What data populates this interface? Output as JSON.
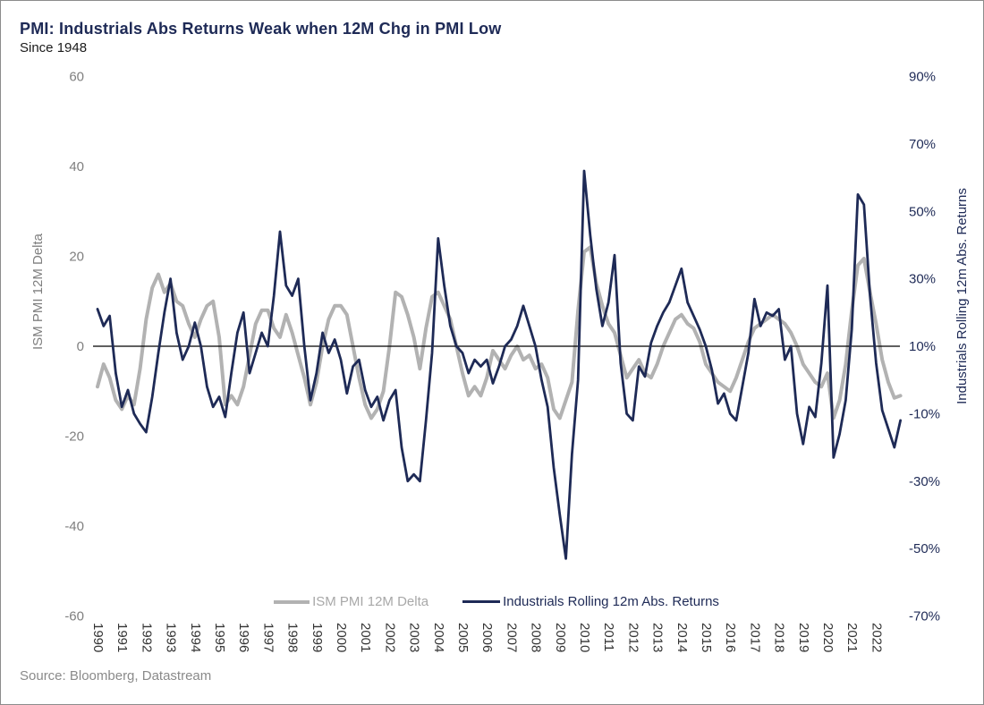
{
  "header": {
    "title": "PMI: Industrials Abs Returns Weak when 12M Chg in PMI Low",
    "subtitle": "Since 1948"
  },
  "source": "Source: Bloomberg, Datastream",
  "colors": {
    "navy": "#1e2a56",
    "gray": "#b2b2b2"
  },
  "chart_data": {
    "type": "line",
    "title": "PMI: Industrials Abs Returns Weak when 12M Chg in PMI Low",
    "subtitle": "Since 1948",
    "grid": false,
    "legend_position": "bottom",
    "left_axis": {
      "label": "ISM PMI 12M Delta",
      "ticks": [
        60,
        40,
        20,
        0,
        -20,
        -40,
        -60
      ],
      "range": [
        -60,
        60
      ]
    },
    "right_axis": {
      "label": "Industrials Rolling 12m Abs. Returns",
      "ticks": [
        "90%",
        "70%",
        "50%",
        "30%",
        "10%",
        "-10%",
        "-30%",
        "-50%",
        "-70%"
      ],
      "range": [
        -70,
        90
      ]
    },
    "x_ticks": [
      1990,
      1991,
      1992,
      1993,
      1994,
      1995,
      1996,
      1997,
      1998,
      1999,
      2000,
      2001,
      2002,
      2003,
      2004,
      2005,
      2006,
      2007,
      2008,
      2009,
      2010,
      2011,
      2012,
      2013,
      2014,
      2015,
      2016,
      2017,
      2018,
      2019,
      2020,
      2021,
      2022
    ],
    "zero_line": 0,
    "series": [
      {
        "name": "ISM PMI 12M Delta",
        "axis": "left",
        "color": "#b2b2b2",
        "x_start": 1990,
        "x_step": 0.25,
        "values": [
          -9,
          -4,
          -7,
          -12,
          -14,
          -11,
          -13,
          -5,
          6,
          13,
          16,
          12,
          14,
          10,
          9,
          5,
          2,
          6,
          9,
          10,
          2,
          -13,
          -11,
          -13,
          -9,
          -2,
          5,
          8,
          8,
          4,
          2,
          7,
          3,
          -2,
          -7,
          -13,
          -8,
          0,
          6,
          9,
          9,
          7,
          0,
          -7,
          -13,
          -16,
          -14,
          -10,
          0,
          12,
          11,
          7,
          2,
          -5,
          4,
          11,
          12,
          9,
          6,
          0,
          -6,
          -11,
          -9,
          -11,
          -7,
          -1,
          -3,
          -5,
          -2,
          0,
          -3,
          -2,
          -5,
          -4,
          -7,
          -14,
          -16,
          -12,
          -8,
          8,
          21,
          22,
          14,
          9,
          5,
          3,
          -2,
          -7,
          -5,
          -3,
          -6,
          -7,
          -4,
          0,
          3,
          6,
          7,
          5,
          4,
          1,
          -4,
          -6,
          -8,
          -9,
          -10,
          -7,
          -3,
          1,
          4,
          5,
          6,
          7,
          6,
          5,
          3,
          0,
          -4,
          -6,
          -8,
          -9,
          -6,
          -16,
          -12,
          -4,
          8,
          18,
          19.5,
          12,
          5,
          -3,
          -8,
          -11.5,
          -11
        ]
      },
      {
        "name": "Industrials Rolling 12m Abs. Returns",
        "axis": "right",
        "color": "#1e2a56",
        "x_start": 1990,
        "x_step": 0.25,
        "values": [
          21,
          16,
          19,
          2,
          -8,
          -3,
          -10,
          -13,
          -15.5,
          -5,
          8,
          20,
          30,
          14,
          6,
          10,
          17,
          10,
          -2,
          -8,
          -5,
          -11,
          2,
          14,
          20,
          2,
          8,
          14,
          10,
          25,
          44,
          28,
          25,
          30,
          10,
          -6,
          2,
          14,
          8,
          12,
          6,
          -4,
          4,
          6,
          -3,
          -8,
          -5,
          -12,
          -6,
          -3,
          -20,
          -30,
          -28,
          -30,
          -12,
          8,
          42,
          28,
          16,
          10,
          8,
          2,
          6,
          4,
          6,
          -1,
          4,
          10,
          12,
          16,
          22,
          16,
          10,
          0,
          -8,
          -26,
          -40,
          -53,
          -22,
          0,
          62,
          43,
          27,
          16,
          23,
          37,
          5,
          -10,
          -12,
          4,
          1,
          11,
          16,
          20,
          23,
          28,
          33,
          23,
          19,
          15,
          10,
          3,
          -7,
          -4,
          -10,
          -12,
          -2,
          8,
          24,
          16,
          20,
          19,
          21,
          6,
          10,
          -10,
          -19,
          -8,
          -11,
          5,
          28,
          -23,
          -16,
          -6,
          15,
          55,
          52,
          25,
          5,
          -9,
          -14.5,
          -20,
          -12
        ]
      }
    ]
  }
}
